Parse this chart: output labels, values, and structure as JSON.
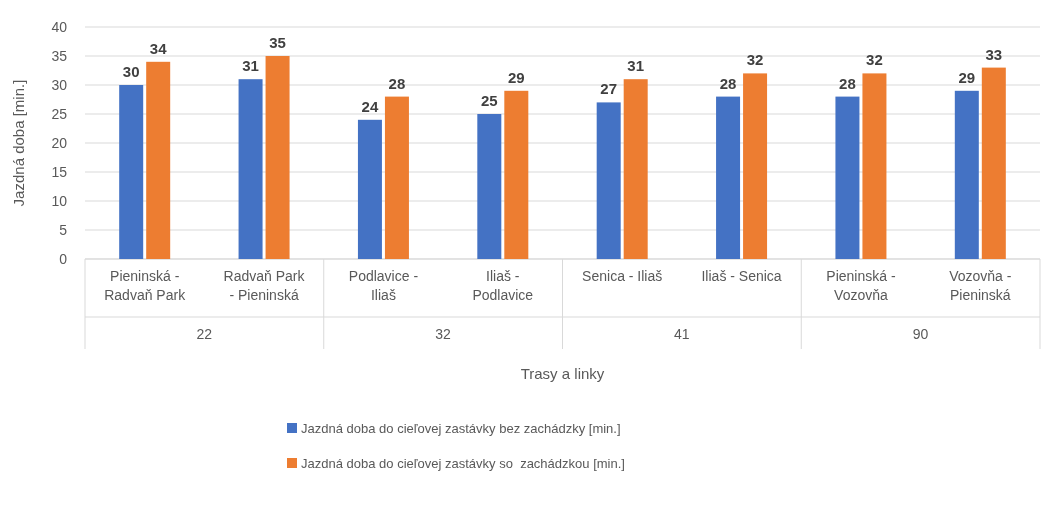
{
  "chart_data": {
    "type": "bar",
    "ylabel": "Jazdná doba [min.]",
    "xlabel": "Trasy a linky",
    "categories": [
      "Pieninská - Radvaň Park",
      "Radvaň Park - Pieninská",
      "Podlavice - Iliaš",
      "Iliaš - Podlavice",
      "Senica - Iliaš",
      "Iliaš - Senica",
      "Pieninská - Vozovňa",
      "Vozovňa - Pieninská"
    ],
    "series": [
      {
        "name": "Jazdná doba do cieľovej zastávky bez zachádzky [min.]",
        "color": "#4472c4",
        "values": [
          30,
          31,
          24,
          25,
          27,
          28,
          28,
          29
        ]
      },
      {
        "name": "Jazdná doba do cieľovej zastávky so  zachádzkou [min.]",
        "color": "#ed7d31",
        "values": [
          34,
          35,
          28,
          29,
          31,
          32,
          32,
          33
        ]
      }
    ],
    "annotations": [
      "22",
      "32",
      "41",
      "90"
    ],
    "ylim": [
      0,
      40
    ],
    "yticks": [
      0,
      5,
      10,
      15,
      20,
      25,
      30,
      35,
      40
    ],
    "grid": "y",
    "legend": "bottom",
    "data_labels": true
  }
}
